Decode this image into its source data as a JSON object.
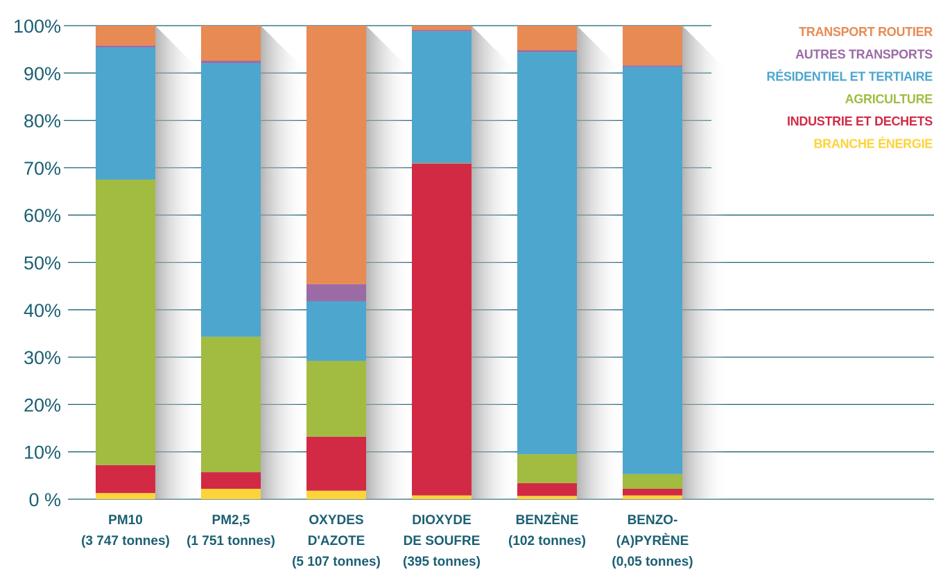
{
  "chart_data": {
    "type": "bar",
    "stacked": true,
    "percent": true,
    "ylim": [
      0,
      100
    ],
    "yticks": [
      "0 %",
      "10%",
      "20%",
      "30%",
      "40%",
      "50%",
      "60%",
      "70%",
      "80%",
      "90%",
      "100%"
    ],
    "legend_position": "top-right",
    "grid": true,
    "categories": [
      [
        "PM10",
        "(3 747 tonnes)"
      ],
      [
        "PM2,5",
        "(1 751 tonnes)"
      ],
      [
        "OXYDES",
        "D'AZOTE",
        "(5 107 tonnes)"
      ],
      [
        "DIOXYDE",
        "DE SOUFRE",
        "(395 tonnes)"
      ],
      [
        "BENZÈNE",
        "(102 tonnes)"
      ],
      [
        "BENZO-",
        "(A)PYRÈNE",
        "(0,05 tonnes)"
      ]
    ],
    "series": [
      {
        "name": "BRANCHE ÉNERGIE",
        "color": "#fcd33a",
        "values": [
          1.3,
          2.2,
          1.8,
          0.8,
          0.7,
          0.8
        ]
      },
      {
        "name": "INDUSTRIE ET DECHETS",
        "color": "#d22a45",
        "values": [
          5.9,
          3.5,
          11.4,
          70.1,
          2.7,
          1.4
        ]
      },
      {
        "name": "AGRICULTURE",
        "color": "#a2bc42",
        "values": [
          60.3,
          28.6,
          16.0,
          0.1,
          6.1,
          3.1
        ]
      },
      {
        "name": "RÉSIDENTIEL ET TERTIAIRE",
        "color": "#4da6cd",
        "values": [
          27.9,
          57.8,
          12.6,
          27.8,
          84.9,
          86.0
        ]
      },
      {
        "name": "AUTRES TRANSPORTS",
        "color": "#9b6ba5",
        "values": [
          0.4,
          0.5,
          3.6,
          0.3,
          0.4,
          0.3
        ]
      },
      {
        "name": "TRANSPORT ROUTIER",
        "color": "#e88a53",
        "values": [
          4.2,
          7.4,
          54.6,
          0.9,
          5.2,
          8.4
        ]
      }
    ],
    "legend_order": [
      "TRANSPORT ROUTIER",
      "AUTRES TRANSPORTS",
      "RÉSIDENTIEL ET TERTIAIRE",
      "AGRICULTURE",
      "INDUSTRIE ET DECHETS",
      "BRANCHE ÉNERGIE"
    ],
    "colors": {
      "axis_text": "#1b5f73",
      "grid": "#1b5f73"
    }
  }
}
